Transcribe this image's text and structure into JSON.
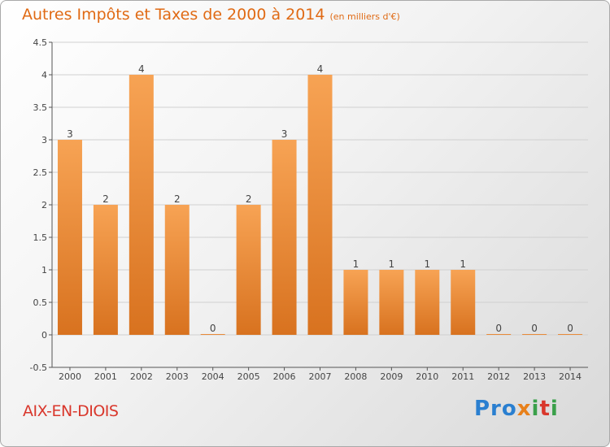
{
  "title": "Autres Impôts et Taxes de 2000 à 2014",
  "subtitle": "(en milliers d'€)",
  "locality": "AIX-EN-DIOIS",
  "logo": {
    "p1": "Pro",
    "p2": "x",
    "p3": "i",
    "p4": "t",
    "p5": "i"
  },
  "colors": {
    "bar_light": "#f7a354",
    "bar_dark": "#d8721f",
    "title": "#e06a14",
    "locality": "#d9372c",
    "grid": "#d0d0d0"
  },
  "chart_data": {
    "type": "bar",
    "categories": [
      "2000",
      "2001",
      "2002",
      "2003",
      "2004",
      "2005",
      "2006",
      "2007",
      "2008",
      "2009",
      "2010",
      "2011",
      "2012",
      "2013",
      "2014"
    ],
    "values": [
      3,
      2,
      4,
      2,
      0,
      2,
      3,
      4,
      1,
      1,
      1,
      1,
      0,
      0,
      0
    ],
    "data_labels": [
      "3",
      "2",
      "4",
      "2",
      "0",
      "2",
      "3",
      "4",
      "1",
      "1",
      "1",
      "1",
      "0",
      "0",
      "0"
    ],
    "yticks": [
      "-0.5",
      "0",
      "0.5",
      "1",
      "1.5",
      "2",
      "2.5",
      "3",
      "3.5",
      "4",
      "4.5"
    ],
    "ylim": [
      -0.5,
      4.5
    ],
    "grid": true
  }
}
